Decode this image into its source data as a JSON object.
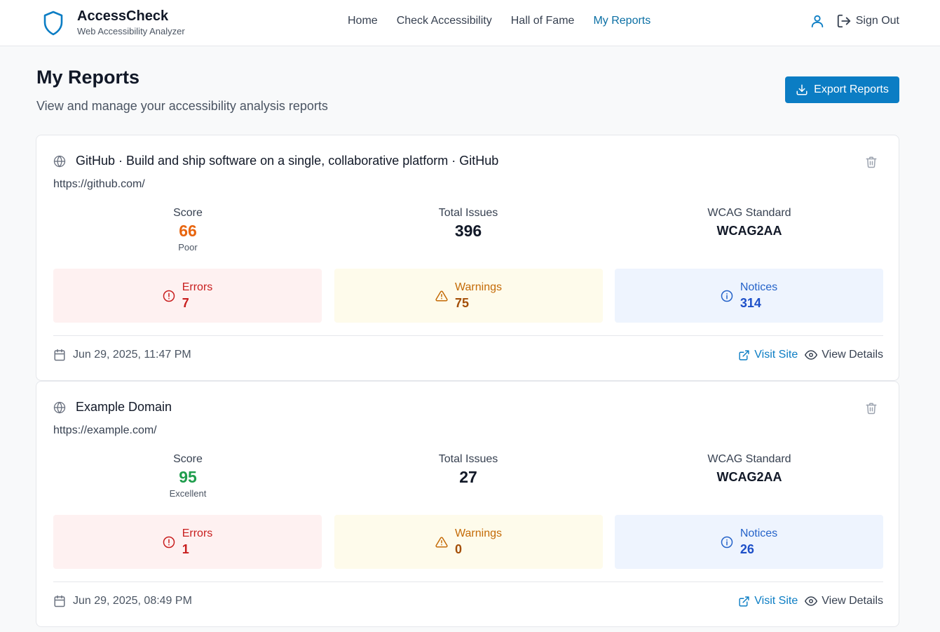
{
  "header": {
    "app_name": "AccessCheck",
    "app_subtitle": "Web Accessibility Analyzer",
    "nav": [
      {
        "label": "Home"
      },
      {
        "label": "Check Accessibility"
      },
      {
        "label": "Hall of Fame"
      },
      {
        "label": "My Reports",
        "active": true
      }
    ],
    "sign_out_label": "Sign Out"
  },
  "page": {
    "title": "My Reports",
    "subtitle": "View and manage your accessibility analysis reports",
    "export_label": "Export Reports"
  },
  "labels": {
    "score": "Score",
    "total_issues": "Total Issues",
    "wcag_standard": "WCAG Standard",
    "errors": "Errors",
    "warnings": "Warnings",
    "notices": "Notices",
    "visit_site": "Visit Site",
    "view_details": "View Details"
  },
  "reports": [
    {
      "title": "GitHub · Build and ship software on a single, collaborative platform · GitHub",
      "url": "https://github.com/",
      "score": "66",
      "rating": "Poor",
      "score_color": "#e8650f",
      "total_issues": "396",
      "wcag": "WCAG2AA",
      "errors": "7",
      "warnings": "75",
      "notices": "314",
      "date": "Jun 29, 2025, 11:47 PM"
    },
    {
      "title": "Example Domain",
      "url": "https://example.com/",
      "score": "95",
      "rating": "Excellent",
      "score_color": "#1f9d4c",
      "total_issues": "27",
      "wcag": "WCAG2AA",
      "errors": "1",
      "warnings": "0",
      "notices": "26",
      "date": "Jun 29, 2025, 08:49 PM"
    }
  ],
  "icons": {
    "logo": "shield-icon",
    "user": "user-icon",
    "sign_out": "sign-out-icon",
    "export": "download-icon",
    "globe": "globe-icon",
    "trash": "trash-icon",
    "error": "alert-circle-icon",
    "warning": "alert-triangle-icon",
    "notice": "info-icon",
    "calendar": "calendar-icon",
    "visit": "external-link-icon",
    "details": "eye-icon"
  },
  "colors": {
    "accent": "#0b7dc4",
    "nav_active": "#0b6fa4"
  }
}
